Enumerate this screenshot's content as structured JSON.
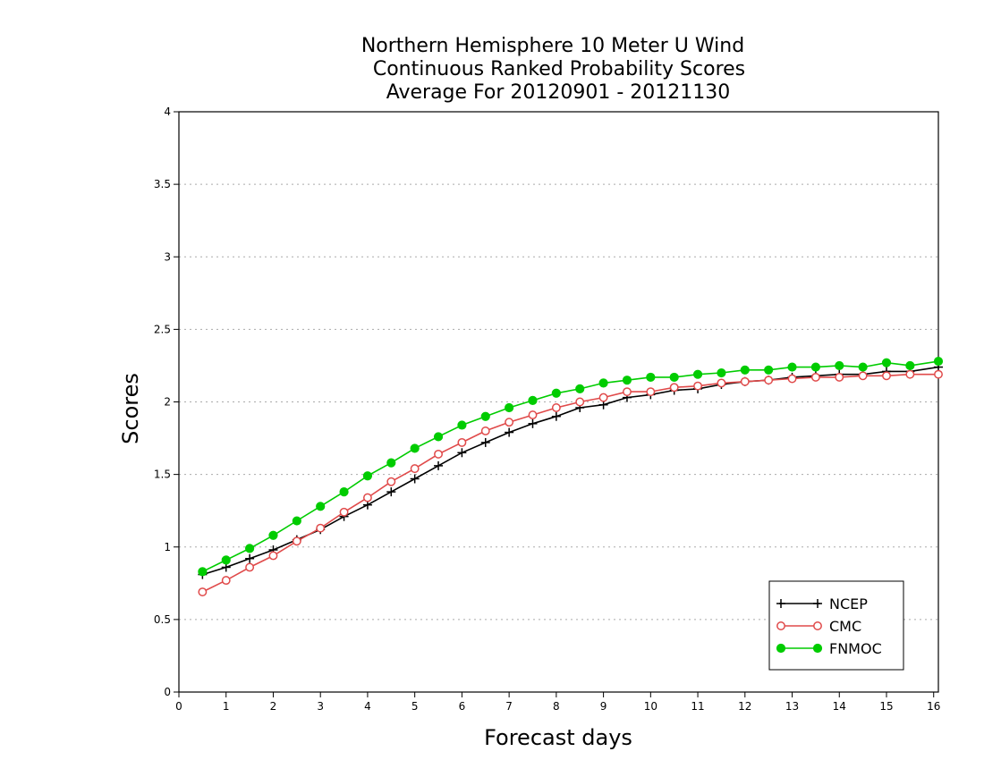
{
  "chart_data": {
    "type": "line",
    "title_lines": [
      "Northern Hemisphere 10 Meter U Wind",
      "Continuous Ranked Probability Scores",
      "Average For 20120901 - 20121130"
    ],
    "xlabel": "Forecast days",
    "ylabel": "Scores",
    "xlim": [
      0,
      16.1
    ],
    "ylim": [
      0,
      4
    ],
    "xticks": [
      "0",
      "1",
      "2",
      "3",
      "4",
      "5",
      "6",
      "7",
      "8",
      "9",
      "10",
      "11",
      "12",
      "13",
      "14",
      "15",
      "16"
    ],
    "yticks": [
      "0",
      "0.5",
      "1",
      "1.5",
      "2",
      "2.5",
      "3",
      "3.5",
      "4"
    ],
    "grid": "horizontal dotted",
    "legend_position": "bottom-right",
    "x": [
      0.5,
      1,
      1.5,
      2,
      2.5,
      3,
      3.5,
      4,
      4.5,
      5,
      5.5,
      6,
      6.5,
      7,
      7.5,
      8,
      8.5,
      9,
      9.5,
      10,
      10.5,
      11,
      11.5,
      12,
      12.5,
      13,
      13.5,
      14,
      14.5,
      15,
      15.5,
      16.1
    ],
    "series": [
      {
        "name": "NCEP",
        "color": "#000000",
        "marker": "plus",
        "values": [
          0.81,
          0.86,
          0.92,
          0.98,
          1.05,
          1.12,
          1.21,
          1.29,
          1.38,
          1.47,
          1.56,
          1.65,
          1.72,
          1.79,
          1.85,
          1.9,
          1.96,
          1.98,
          2.03,
          2.05,
          2.08,
          2.09,
          2.12,
          2.14,
          2.15,
          2.17,
          2.18,
          2.19,
          2.19,
          2.21,
          2.21,
          2.24
        ]
      },
      {
        "name": "CMC",
        "color": "#e04a4a",
        "marker": "open-circle",
        "values": [
          0.69,
          0.77,
          0.86,
          0.94,
          1.04,
          1.13,
          1.24,
          1.34,
          1.45,
          1.54,
          1.64,
          1.72,
          1.8,
          1.86,
          1.91,
          1.96,
          2.0,
          2.03,
          2.07,
          2.07,
          2.1,
          2.11,
          2.13,
          2.14,
          2.15,
          2.16,
          2.17,
          2.17,
          2.18,
          2.18,
          2.19,
          2.19
        ]
      },
      {
        "name": "FNMOC",
        "color": "#00cc00",
        "marker": "filled-circle",
        "values": [
          0.83,
          0.91,
          0.99,
          1.08,
          1.18,
          1.28,
          1.38,
          1.49,
          1.58,
          1.68,
          1.76,
          1.84,
          1.9,
          1.96,
          2.01,
          2.06,
          2.09,
          2.13,
          2.15,
          2.17,
          2.17,
          2.19,
          2.2,
          2.22,
          2.22,
          2.24,
          2.24,
          2.25,
          2.24,
          2.27,
          2.25,
          2.28
        ]
      }
    ]
  }
}
